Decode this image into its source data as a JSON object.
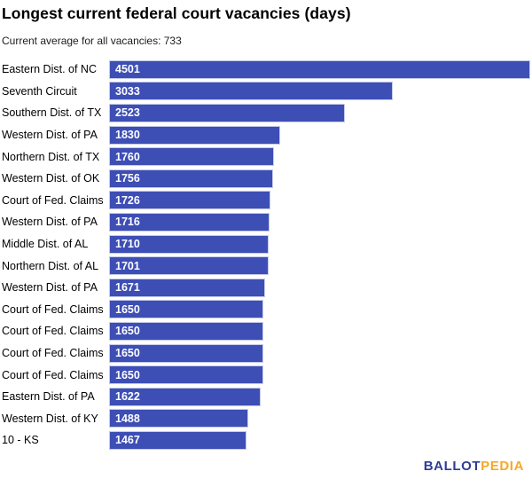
{
  "header": {
    "title": "Longest current federal court vacancies (days)",
    "subtitle": "Current average for all vacancies: 733"
  },
  "footer": {
    "logo": {
      "part1": "BALLOT",
      "part2": "PEDIA"
    }
  },
  "colors": {
    "bar_fill": "#3D4EB5",
    "bar_border": "#C5CAE9",
    "value_text": "#FFFFFF",
    "logo_blue": "#2E3C96",
    "logo_gold": "#F6A829"
  },
  "chart_data": {
    "type": "bar",
    "orientation": "horizontal",
    "title": "Longest current federal court vacancies (days)",
    "subtitle": "Current average for all vacancies: 733",
    "categories": [
      "Eastern Dist. of NC",
      "Seventh Circuit",
      "Southern Dist. of TX",
      "Western Dist. of PA",
      "Northern Dist. of TX",
      "Western Dist. of OK",
      "Court of Fed. Claims",
      "Western Dist. of PA",
      "Middle Dist. of AL",
      "Northern Dist. of AL",
      "Western Dist. of PA",
      "Court of Fed. Claims",
      "Court of Fed. Claims",
      "Court of Fed. Claims",
      "Court of Fed. Claims",
      "Eastern Dist. of PA",
      "Western Dist. of KY",
      "10 - KS"
    ],
    "values": [
      4501,
      3033,
      2523,
      1830,
      1760,
      1756,
      1726,
      1716,
      1710,
      1701,
      1671,
      1650,
      1650,
      1650,
      1650,
      1622,
      1488,
      1467
    ],
    "xlabel": "",
    "ylabel": "",
    "xlim": [
      0,
      4501
    ],
    "grid": false,
    "legend": false,
    "value_labels_inside_bars": true
  }
}
